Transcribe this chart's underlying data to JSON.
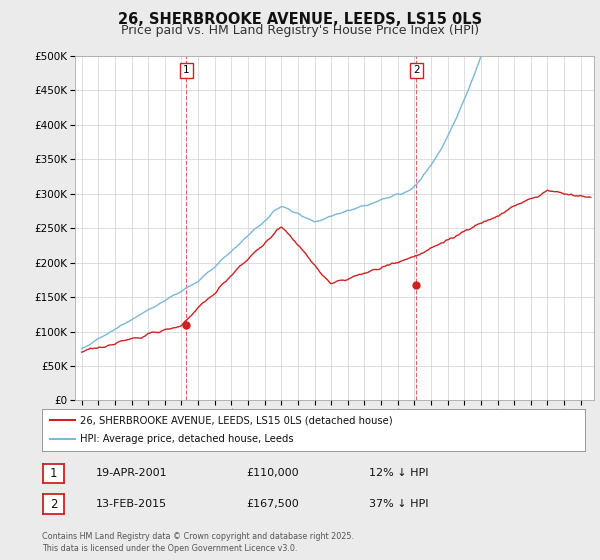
{
  "title": "26, SHERBROOKE AVENUE, LEEDS, LS15 0LS",
  "subtitle": "Price paid vs. HM Land Registry's House Price Index (HPI)",
  "ylim": [
    0,
    500000
  ],
  "yticks": [
    0,
    50000,
    100000,
    150000,
    200000,
    250000,
    300000,
    350000,
    400000,
    450000,
    500000
  ],
  "hpi_color": "#7ab8d9",
  "price_color": "#cc2222",
  "m1_t": 2001.29,
  "m2_t": 2015.12,
  "m1_p": 110000,
  "m2_p": 167500,
  "legend_label1": "26, SHERBROOKE AVENUE, LEEDS, LS15 0LS (detached house)",
  "legend_label2": "HPI: Average price, detached house, Leeds",
  "table_row1": [
    "1",
    "19-APR-2001",
    "£110,000",
    "12% ↓ HPI"
  ],
  "table_row2": [
    "2",
    "13-FEB-2015",
    "£167,500",
    "37% ↓ HPI"
  ],
  "footnote": "Contains HM Land Registry data © Crown copyright and database right 2025.\nThis data is licensed under the Open Government Licence v3.0.",
  "background_color": "#ebebeb",
  "plot_bg_color": "#ffffff",
  "grid_color": "#d0d0d0",
  "title_fontsize": 10.5,
  "subtitle_fontsize": 9
}
